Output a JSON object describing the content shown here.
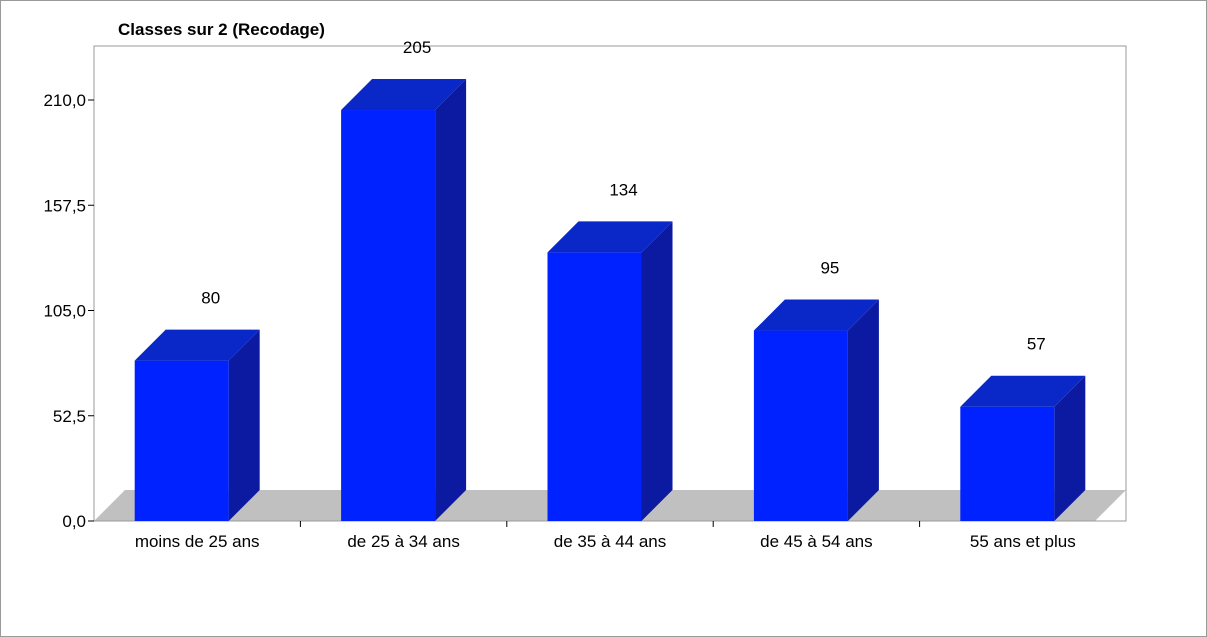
{
  "chart_data": {
    "type": "bar",
    "title": "Classes sur 2 (Recodage)",
    "categories": [
      "moins de 25 ans",
      "de 25 à 34 ans",
      "de 35 à 44 ans",
      "de 45 à 54 ans",
      "55 ans et plus"
    ],
    "values": [
      80,
      205,
      134,
      95,
      57
    ],
    "data_labels": [
      "80",
      "205",
      "134",
      "95",
      "57"
    ],
    "ylim": [
      0,
      210
    ],
    "yticks": [
      "0,0",
      "52,5",
      "105,0",
      "157,5",
      "210,0"
    ],
    "ytick_values": [
      0,
      52.5,
      105,
      157.5,
      210
    ],
    "xlabel": "",
    "ylabel": "",
    "three_d": true,
    "grid": false,
    "legend": "none",
    "colors": {
      "bar_front": "#0022ff",
      "bar_top": "#0a28c8",
      "bar_side": "#0b1aa0",
      "floor": "#c0c0c0"
    }
  }
}
